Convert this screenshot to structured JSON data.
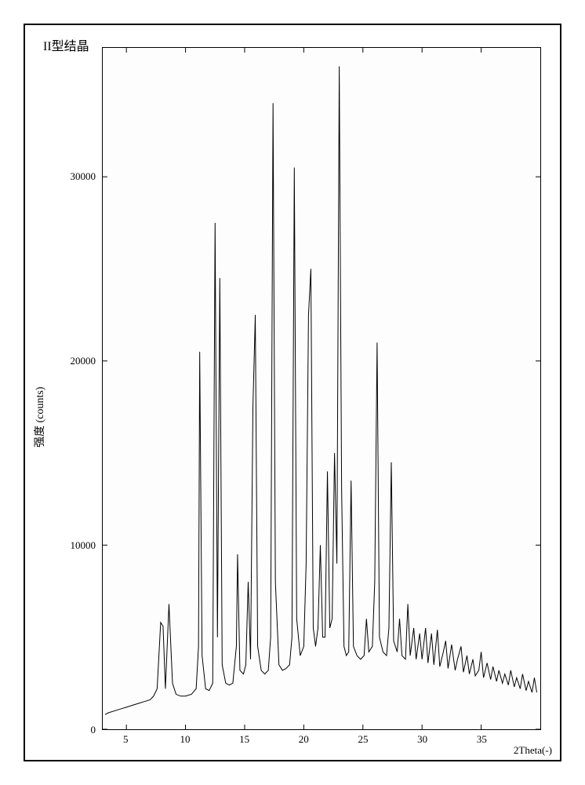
{
  "title": "II型结晶",
  "y_axis_label": "强度 (counts)",
  "x_axis_label": "2Theta(-)",
  "chart": {
    "type": "line",
    "x_range": [
      3,
      40
    ],
    "y_range": [
      0,
      37000
    ],
    "x_ticks": [
      5,
      10,
      15,
      20,
      25,
      30,
      35
    ],
    "y_ticks": [
      0,
      10000,
      20000,
      30000
    ],
    "line_color": "#000000",
    "line_width": 1,
    "background_color": "#ffffff",
    "border_color": "#000000",
    "tick_fontsize": 13,
    "label_fontsize": 14,
    "title_fontsize": 16,
    "data": [
      [
        3.2,
        800
      ],
      [
        3.5,
        900
      ],
      [
        4.0,
        1000
      ],
      [
        4.5,
        1100
      ],
      [
        5.0,
        1200
      ],
      [
        5.5,
        1300
      ],
      [
        6.0,
        1400
      ],
      [
        6.5,
        1500
      ],
      [
        7.0,
        1600
      ],
      [
        7.3,
        1800
      ],
      [
        7.6,
        2200
      ],
      [
        7.9,
        5800
      ],
      [
        8.1,
        5600
      ],
      [
        8.3,
        2200
      ],
      [
        8.6,
        6800
      ],
      [
        8.9,
        2500
      ],
      [
        9.2,
        1900
      ],
      [
        9.6,
        1800
      ],
      [
        10.0,
        1800
      ],
      [
        10.5,
        1900
      ],
      [
        10.9,
        2200
      ],
      [
        11.1,
        4500
      ],
      [
        11.2,
        20500
      ],
      [
        11.4,
        4000
      ],
      [
        11.7,
        2200
      ],
      [
        12.0,
        2100
      ],
      [
        12.3,
        2500
      ],
      [
        12.5,
        27500
      ],
      [
        12.7,
        5000
      ],
      [
        12.9,
        24500
      ],
      [
        13.1,
        3500
      ],
      [
        13.4,
        2500
      ],
      [
        13.7,
        2400
      ],
      [
        14.0,
        2500
      ],
      [
        14.3,
        4500
      ],
      [
        14.4,
        9500
      ],
      [
        14.6,
        3200
      ],
      [
        14.9,
        3000
      ],
      [
        15.1,
        3500
      ],
      [
        15.3,
        8000
      ],
      [
        15.5,
        3800
      ],
      [
        15.7,
        17500
      ],
      [
        15.9,
        22500
      ],
      [
        16.1,
        4500
      ],
      [
        16.4,
        3200
      ],
      [
        16.7,
        3000
      ],
      [
        17.0,
        3200
      ],
      [
        17.2,
        5000
      ],
      [
        17.4,
        34000
      ],
      [
        17.6,
        8000
      ],
      [
        17.9,
        3500
      ],
      [
        18.2,
        3200
      ],
      [
        18.5,
        3300
      ],
      [
        18.8,
        3500
      ],
      [
        19.0,
        5000
      ],
      [
        19.2,
        30500
      ],
      [
        19.4,
        6000
      ],
      [
        19.7,
        4000
      ],
      [
        20.0,
        4500
      ],
      [
        20.2,
        9000
      ],
      [
        20.4,
        22500
      ],
      [
        20.6,
        25000
      ],
      [
        20.8,
        5500
      ],
      [
        21.0,
        4500
      ],
      [
        21.2,
        5500
      ],
      [
        21.4,
        10000
      ],
      [
        21.6,
        5000
      ],
      [
        21.8,
        5000
      ],
      [
        22.0,
        14000
      ],
      [
        22.2,
        5500
      ],
      [
        22.4,
        6000
      ],
      [
        22.6,
        15000
      ],
      [
        22.8,
        9000
      ],
      [
        23.0,
        36000
      ],
      [
        23.2,
        13000
      ],
      [
        23.4,
        4500
      ],
      [
        23.6,
        4000
      ],
      [
        23.8,
        4200
      ],
      [
        24.0,
        13500
      ],
      [
        24.2,
        4500
      ],
      [
        24.5,
        4000
      ],
      [
        24.8,
        3800
      ],
      [
        25.1,
        4000
      ],
      [
        25.3,
        6000
      ],
      [
        25.5,
        4200
      ],
      [
        25.8,
        4500
      ],
      [
        26.0,
        8000
      ],
      [
        26.2,
        21000
      ],
      [
        26.4,
        5000
      ],
      [
        26.7,
        4200
      ],
      [
        27.0,
        4000
      ],
      [
        27.2,
        5500
      ],
      [
        27.4,
        14500
      ],
      [
        27.6,
        4800
      ],
      [
        27.9,
        4200
      ],
      [
        28.1,
        6000
      ],
      [
        28.3,
        4000
      ],
      [
        28.6,
        3800
      ],
      [
        28.8,
        6800
      ],
      [
        29.0,
        4000
      ],
      [
        29.3,
        5500
      ],
      [
        29.5,
        3800
      ],
      [
        29.8,
        5200
      ],
      [
        30.0,
        3800
      ],
      [
        30.3,
        5500
      ],
      [
        30.5,
        3600
      ],
      [
        30.8,
        5200
      ],
      [
        31.0,
        3500
      ],
      [
        31.3,
        5400
      ],
      [
        31.5,
        3400
      ],
      [
        31.8,
        4200
      ],
      [
        32.0,
        4800
      ],
      [
        32.2,
        3300
      ],
      [
        32.5,
        4600
      ],
      [
        32.8,
        3200
      ],
      [
        33.0,
        3800
      ],
      [
        33.3,
        4500
      ],
      [
        33.5,
        3100
      ],
      [
        33.8,
        4000
      ],
      [
        34.0,
        3000
      ],
      [
        34.3,
        3800
      ],
      [
        34.5,
        2900
      ],
      [
        34.8,
        3200
      ],
      [
        35.0,
        4200
      ],
      [
        35.2,
        2800
      ],
      [
        35.5,
        3600
      ],
      [
        35.8,
        2700
      ],
      [
        36.0,
        3400
      ],
      [
        36.3,
        2600
      ],
      [
        36.5,
        3200
      ],
      [
        36.8,
        2500
      ],
      [
        37.0,
        3000
      ],
      [
        37.3,
        2400
      ],
      [
        37.5,
        3200
      ],
      [
        37.8,
        2300
      ],
      [
        38.0,
        2800
      ],
      [
        38.3,
        2200
      ],
      [
        38.5,
        3000
      ],
      [
        38.8,
        2100
      ],
      [
        39.0,
        2600
      ],
      [
        39.3,
        2000
      ],
      [
        39.5,
        2800
      ],
      [
        39.7,
        2000
      ]
    ]
  }
}
